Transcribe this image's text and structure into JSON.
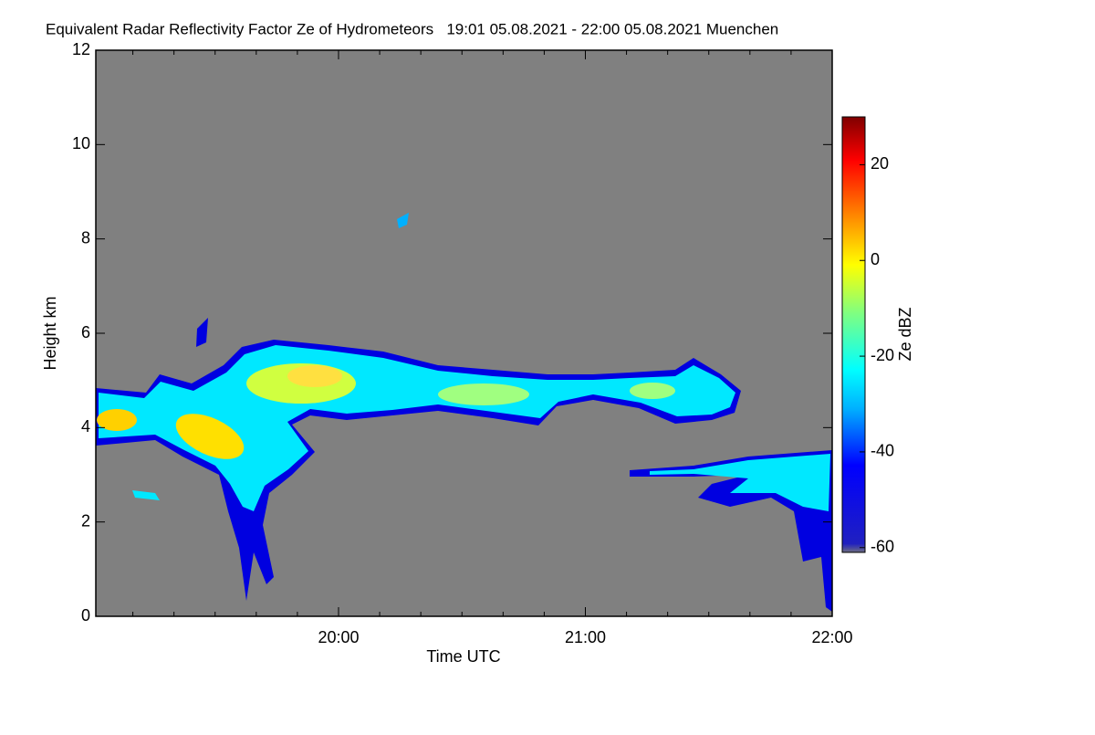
{
  "chart_data": {
    "type": "heatmap",
    "title": "Equivalent Radar Reflectivity Factor Ze of Hydrometeors   19:01 05.08.2021 - 22:00 05.08.2021 Muenchen",
    "xlabel": "Time UTC",
    "ylabel": "Height km",
    "colorbar_label": "Ze dBZ",
    "xlim": [
      1141,
      1320
    ],
    "xticks": [
      {
        "value": 1200,
        "label": "20:00"
      },
      {
        "value": 1260,
        "label": "21:00"
      },
      {
        "value": 1320,
        "label": "22:00"
      }
    ],
    "ylim": [
      0,
      12
    ],
    "yticks": [
      0,
      2,
      4,
      6,
      8,
      10,
      12
    ],
    "clim": [
      -61,
      30
    ],
    "cticks": [
      -60,
      -40,
      -20,
      0,
      20
    ]
  }
}
